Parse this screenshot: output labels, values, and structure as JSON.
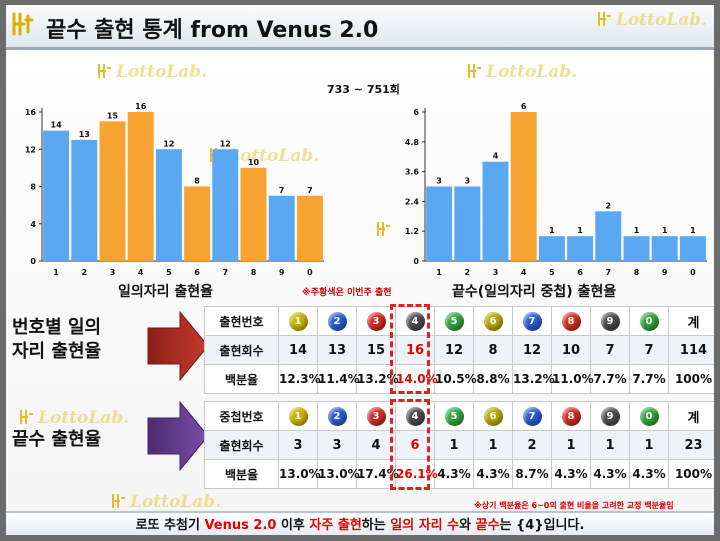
{
  "header": {
    "title": "끝수 출현 통계 from Venus 2.0"
  },
  "watermark_text": "LottoLab.",
  "range_label": "733 ~ 751회",
  "colors": {
    "blue_bar": "#5aa7f2",
    "orange_bar": "#f7a331",
    "arrow_red": "#b5322a",
    "arrow_purple": "#6a3d8f",
    "highlight": "#e60000"
  },
  "chart_data": [
    {
      "type": "bar",
      "title": "일의자리 출현율",
      "categories": [
        "1",
        "2",
        "3",
        "4",
        "5",
        "6",
        "7",
        "8",
        "9",
        "0"
      ],
      "values": [
        14,
        13,
        15,
        16,
        12,
        8,
        12,
        10,
        7,
        7
      ],
      "bar_colors": [
        "blue",
        "blue",
        "orange",
        "orange",
        "blue",
        "orange",
        "blue",
        "orange",
        "blue",
        "orange"
      ],
      "yticks": [
        "0",
        "4",
        "8",
        "12",
        "16"
      ],
      "ylim": [
        0,
        16
      ],
      "grid": false,
      "legend": "none"
    },
    {
      "type": "bar",
      "title": "끝수(일의자리 중첩) 출현율",
      "categories": [
        "1",
        "2",
        "3",
        "4",
        "5",
        "6",
        "7",
        "8",
        "9",
        "0"
      ],
      "values": [
        3,
        3,
        4,
        6,
        1,
        1,
        2,
        1,
        1,
        1
      ],
      "bar_colors": [
        "blue",
        "blue",
        "blue",
        "orange",
        "blue",
        "blue",
        "blue",
        "blue",
        "blue",
        "blue"
      ],
      "yticks": [
        "0",
        "1.2",
        "2.4",
        "3.6",
        "4.8",
        "6"
      ],
      "ylim": [
        0,
        6
      ],
      "grid": false,
      "legend": "none"
    }
  ],
  "note_highlight": "※주황색은 이번주 출현",
  "section1": {
    "label_line1": "번호별 일의",
    "label_line2": "자리 출현율",
    "head_label": "출현번호",
    "count_label": "출현회수",
    "pct_label": "백분율",
    "total_label": "계",
    "digits": [
      "1",
      "2",
      "3",
      "4",
      "5",
      "6",
      "7",
      "8",
      "9",
      "0"
    ],
    "counts": [
      "14",
      "13",
      "15",
      "16",
      "12",
      "8",
      "12",
      "10",
      "7",
      "7",
      "114"
    ],
    "pcts": [
      "12.3%",
      "11.4%",
      "13.2%",
      "14.0%",
      "10.5%",
      "8.8%",
      "13.2%",
      "11.0%",
      "7.7%",
      "7.7%",
      "100%"
    ]
  },
  "section2": {
    "label": "끝수 출현율",
    "head_label": "중첩번호",
    "count_label": "출현회수",
    "pct_label": "백분율",
    "total_label": "계",
    "digits": [
      "1",
      "2",
      "3",
      "4",
      "5",
      "6",
      "7",
      "8",
      "9",
      "0"
    ],
    "counts": [
      "3",
      "3",
      "4",
      "6",
      "1",
      "1",
      "2",
      "1",
      "1",
      "1",
      "23"
    ],
    "pcts": [
      "13.0%",
      "13.0%",
      "17.4%",
      "26.1%",
      "4.3%",
      "4.3%",
      "8.7%",
      "4.3%",
      "4.3%",
      "4.3%",
      "100%"
    ]
  },
  "ball_colors": [
    "#c9b400",
    "#2a5bd7",
    "#d42a1e",
    "#4a4a4a",
    "#2fa33a",
    "#b8a600",
    "#2a5bd7",
    "#d42a1e",
    "#4a4a4a",
    "#2fa33a"
  ],
  "footnote": "※상기 백분율은 6~0의 출현 비율을 고려한 교정 백분율임",
  "footer": {
    "p1": "로또 추첨기 ",
    "p2": "Venus 2.0",
    "p3": " 이후 ",
    "p4": "자주 출현",
    "p5": "하는 ",
    "p6": "일의 자리 수",
    "p7": "와 ",
    "p8": "끝수",
    "p9": "는 {4}입니다."
  }
}
